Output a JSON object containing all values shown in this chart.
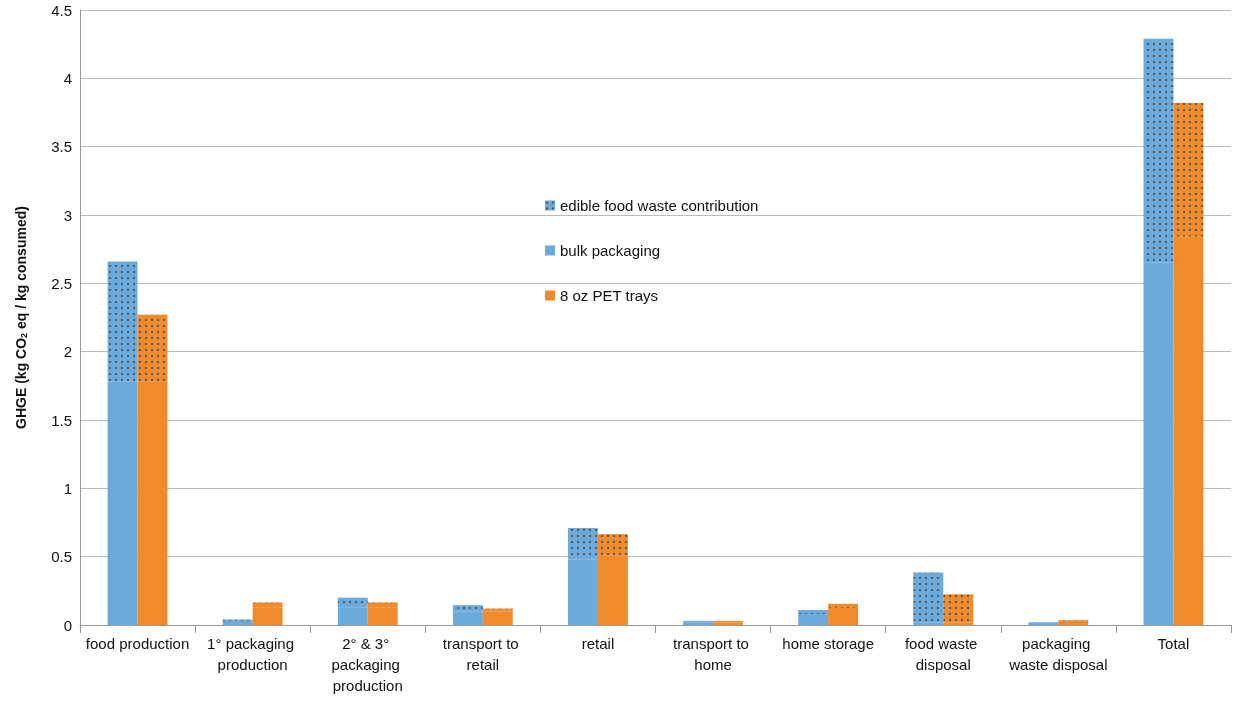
{
  "chart_data": {
    "type": "bar",
    "ylabel": "GHGE (kg CO$_{2}$ eq / kg consumed)",
    "categories": [
      "food production",
      "1° packaging production",
      "2° & 3° packaging production",
      "transport to retail",
      "retail",
      "transport to home",
      "home storage",
      "food waste disposal",
      "packaging waste disposal",
      "Total"
    ],
    "series": [
      {
        "name": "edible food waste contribution",
        "color": "#6aaadd",
        "base": [
          1.78,
          0.03,
          0.13,
          0.1,
          0.48,
          0.02,
          0.08,
          0.02,
          0.015,
          2.65
        ],
        "values": [
          0.88,
          0.01,
          0.07,
          0.045,
          0.23,
          0.01,
          0.03,
          0.365,
          0.005,
          1.64
        ]
      },
      {
        "name": "bulk packaging",
        "color": "#6aaadd",
        "values": [
          1.78,
          0.03,
          0.13,
          0.1,
          0.48,
          0.02,
          0.08,
          0.02,
          0.015,
          2.65
        ]
      },
      {
        "color": "#f08a2a",
        "base": [
          1.78,
          0.13,
          0.13,
          0.1,
          0.51,
          0.02,
          0.125,
          0.02,
          0.03,
          2.84
        ],
        "values": [
          0.49,
          0.035,
          0.035,
          0.02,
          0.155,
          0.01,
          0.03,
          0.205,
          0.005,
          0.98
        ]
      },
      {
        "name": "8 oz PET trays",
        "color": "#f08a2a",
        "values": [
          1.78,
          0.13,
          0.13,
          0.1,
          0.51,
          0.02,
          0.125,
          0.02,
          0.03,
          2.84
        ]
      }
    ],
    "ylim": [
      0,
      4.5
    ],
    "yticks": [
      0,
      0.5,
      1,
      1.5,
      2,
      2.5,
      3,
      3.5,
      4,
      4.5
    ],
    "grid": "y",
    "legend": "center"
  }
}
